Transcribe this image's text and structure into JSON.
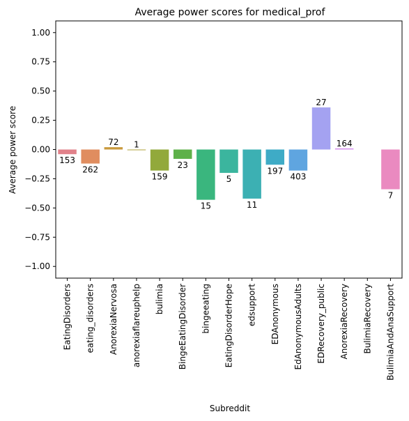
{
  "chart_data": {
    "type": "bar",
    "title": "Average power scores for medical_prof",
    "xlabel": "Subreddit",
    "ylabel": "Average power score",
    "ylim": [
      -1.1,
      1.1
    ],
    "yticks": [
      1.0,
      0.75,
      0.5,
      0.25,
      0.0,
      -0.25,
      -0.5,
      -0.75,
      -1.0
    ],
    "ytick_labels": [
      "1.00",
      "0.75",
      "0.50",
      "0.25",
      "0.00",
      "−0.25",
      "−0.50",
      "−0.75",
      "−1.00"
    ],
    "grid": false,
    "legend": "none",
    "categories": [
      "EatingDisorders",
      "eating_disorders",
      "AnorexiaNervosa",
      "anorexiaflareuphelp",
      "bulimia",
      "BingeEatingDisorder",
      "bingeeating",
      "EatingDisorderHope",
      "edsupport",
      "EDAnonymous",
      "EdAnonymousAdults",
      "EDRecovery_public",
      "AnorexiaRecovery",
      "BulimiaRecovery",
      "BulimiaAndAnaSupport"
    ],
    "values": [
      -0.04,
      -0.12,
      0.02,
      0.0,
      -0.18,
      -0.08,
      -0.43,
      -0.2,
      -0.42,
      -0.13,
      -0.18,
      0.36,
      0.01,
      null,
      -0.34
    ],
    "data_labels": [
      "153",
      "262",
      "72",
      "1",
      "159",
      "23",
      "15",
      "5",
      "11",
      "197",
      "403",
      "27",
      "164",
      "",
      "7"
    ],
    "colors": [
      "#e1818a",
      "#e08d5f",
      "#c99a3e",
      "#b1a33b",
      "#92a93b",
      "#5eb14a",
      "#3ab67e",
      "#3bb59e",
      "#3cb0b3",
      "#3eabc6",
      "#5fa5e0",
      "#a4a2f1",
      "#d694ee",
      "#ea8bd8",
      "#ea8ac0"
    ]
  }
}
